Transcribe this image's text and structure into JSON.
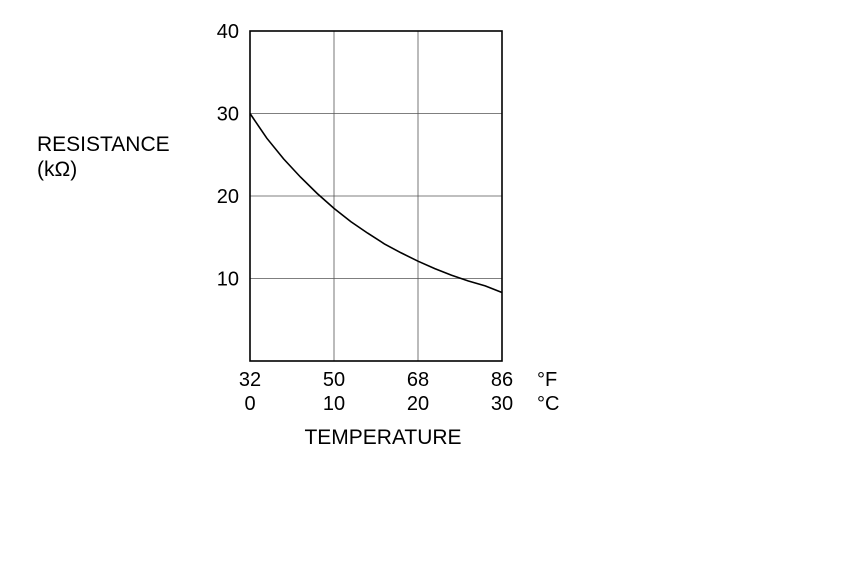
{
  "chart_data": {
    "type": "line",
    "ylabel": [
      "RESISTANCE",
      "(kΩ)"
    ],
    "xlabel": "TEMPERATURE",
    "x_unit_primary": "°F",
    "x_unit_secondary": "°C",
    "x_ticks_fahrenheit": [
      "32",
      "50",
      "68",
      "86"
    ],
    "x_ticks_celsius": [
      "0",
      "10",
      "20",
      "30"
    ],
    "y_ticks": [
      "10",
      "20",
      "30",
      "40"
    ],
    "xlim": [
      0,
      30
    ],
    "ylim": [
      0,
      40
    ],
    "grid": true,
    "series": [
      {
        "x": [
          0,
          2,
          4,
          6,
          8,
          10,
          12,
          14,
          16,
          18,
          20,
          22,
          24,
          26,
          28,
          30
        ],
        "y": [
          30.0,
          27.0,
          24.5,
          22.3,
          20.3,
          18.5,
          16.9,
          15.5,
          14.2,
          13.1,
          12.1,
          11.2,
          10.4,
          9.7,
          9.1,
          8.3
        ]
      }
    ]
  }
}
